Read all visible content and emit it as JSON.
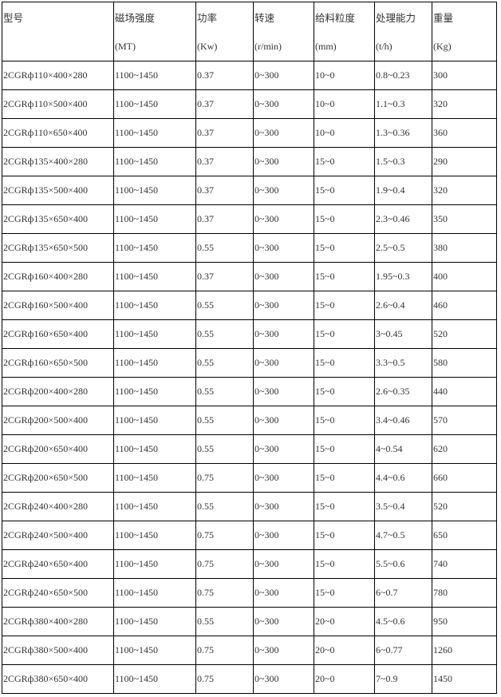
{
  "table": {
    "headers": [
      {
        "label": "型号",
        "unit": ""
      },
      {
        "label": "磁场强度",
        "unit": "(MT)"
      },
      {
        "label": "功率",
        "unit": "(Kw)"
      },
      {
        "label": "转速",
        "unit": "(r/min)"
      },
      {
        "label": "给料粒度",
        "unit": "(mm)"
      },
      {
        "label": "处理能力",
        "unit": "(t/h)"
      },
      {
        "label": "重量",
        "unit": "(Kg)"
      }
    ],
    "rows": [
      [
        "2CGRф110×400×280",
        "1100~1450",
        "0.37",
        "0~300",
        "10~0",
        "0.8~0.23",
        "300"
      ],
      [
        "2CGRф110×500×400",
        "1100~1450",
        "0.37",
        "0~300",
        "10~0",
        "1.1~0.3",
        "320"
      ],
      [
        "2CGRф110×650×400",
        "1100~1450",
        "0.37",
        "0~300",
        "10~0",
        "1.3~0.36",
        "360"
      ],
      [
        "2CGRф135×400×280",
        "1100~1450",
        "0.37",
        "0~300",
        "15~0",
        "1.5~0.3",
        "290"
      ],
      [
        "2CGRф135×500×400",
        "1100~1450",
        "0.37",
        "0~300",
        "15~0",
        "1.9~0.4",
        "320"
      ],
      [
        "2CGRф135×650×400",
        "1100~1450",
        "0.37",
        "0~300",
        "15~0",
        "2.3~0.46",
        "350"
      ],
      [
        "2CGRф135×650×500",
        "1100~1450",
        "0.55",
        "0~300",
        "15~0",
        "2.5~0.5",
        "380"
      ],
      [
        "2CGRф160×400×280",
        "1100~1450",
        "0.37",
        "0~300",
        "15~0",
        "1.95~0.3",
        "400"
      ],
      [
        "2CGRф160×500×400",
        "1100~1450",
        "0.55",
        "0~300",
        "15~0",
        "2.6~0.4",
        "460"
      ],
      [
        "2CGRф160×650×400",
        "1100~1450",
        "0.55",
        "0~300",
        "15~0",
        "3~0.45",
        "520"
      ],
      [
        "2CGRф160×650×500",
        "1100~1450",
        "0.55",
        "0~300",
        "15~0",
        "3.3~0.5",
        "580"
      ],
      [
        "2CGRф200×400×280",
        "1100~1450",
        "0.55",
        "0~300",
        "15~0",
        "2.6~0.35",
        "440"
      ],
      [
        "2CGRф200×500×400",
        "1100~1450",
        "0.55",
        "0~300",
        "15~0",
        "3.4~0.46",
        "570"
      ],
      [
        "2CGRф200×650×400",
        "1100~1450",
        "0.55",
        "0~300",
        "15~0",
        "4~0.54",
        "620"
      ],
      [
        "2CGRф200×650×500",
        "1100~1450",
        "0.75",
        "0~300",
        "15~0",
        "4.4~0.6",
        "660"
      ],
      [
        "2CGRф240×400×280",
        "1100~1450",
        "0.55",
        "0~300",
        "15~0",
        "3.5~0.4",
        "520"
      ],
      [
        "2CGRф240×500×400",
        "1100~1450",
        "0.75",
        "0~300",
        "15~0",
        "4.7~0.5",
        "650"
      ],
      [
        "2CGRф240×650×400",
        "1100~1450",
        "0.75",
        "0~300",
        "15~0",
        "5.5~0.6",
        "740"
      ],
      [
        "2CGRф240×650×500",
        "1100~1450",
        "0.75",
        "0~300",
        "15~0",
        "6~0.7",
        "780"
      ],
      [
        "2CGRф380×400×280",
        "1100~1450",
        "0.55",
        "0~300",
        "20~0",
        "4.5~0.6",
        "950"
      ],
      [
        "2CGRф380×500×400",
        "1100~1450",
        "0.75",
        "0~300",
        "20~0",
        "6~0.77",
        "1260"
      ],
      [
        "2CGRф380×650×400",
        "1100~1450",
        "0.75",
        "0~300",
        "20~0",
        "7~0.9",
        "1450"
      ]
    ]
  }
}
